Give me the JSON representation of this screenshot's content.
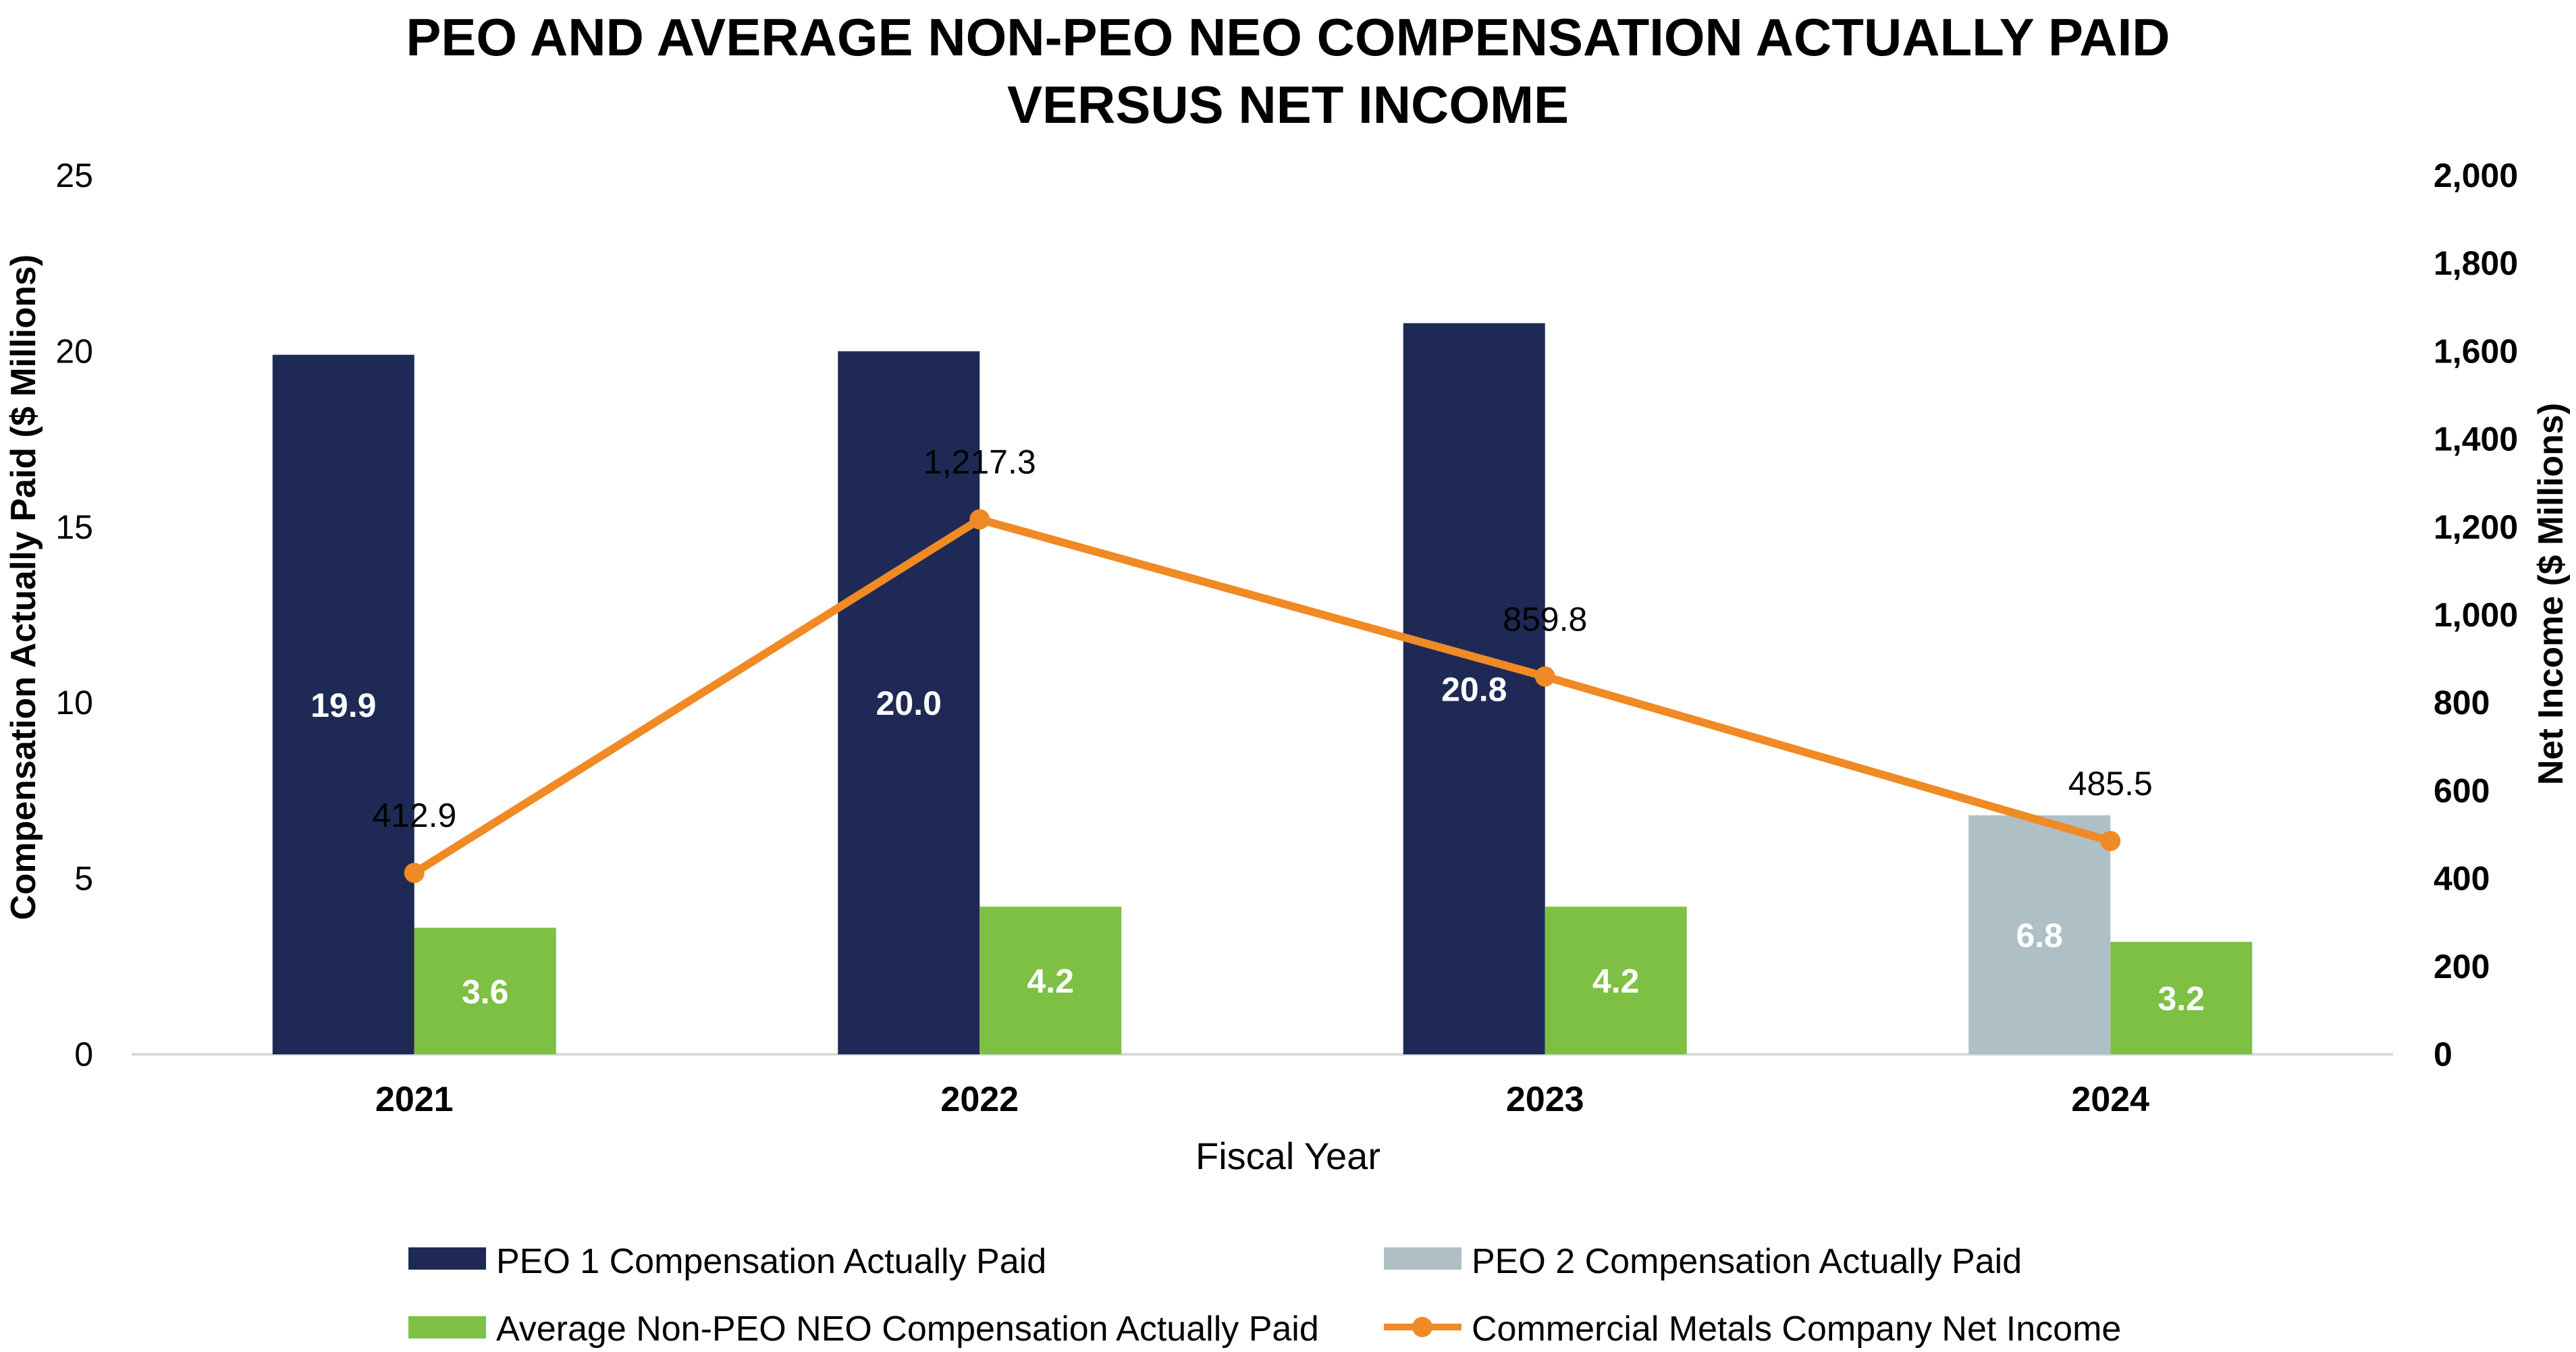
{
  "chart_data": {
    "type": "bar",
    "title_lines": [
      "PEO AND AVERAGE NON-PEO NEO COMPENSATION ACTUALLY PAID",
      "VERSUS NET INCOME"
    ],
    "xlabel": "Fiscal Year",
    "ylabel_left": "Compensation Actually Paid ($ Millions)",
    "ylabel_right": "Net Income ($ Millions)",
    "categories": [
      "2021",
      "2022",
      "2023",
      "2024"
    ],
    "ylim_left": [
      0,
      25
    ],
    "yticks_left": [
      "0",
      "5",
      "10",
      "15",
      "20",
      "25"
    ],
    "ylim_right": [
      0,
      2000
    ],
    "yticks_right": [
      "0",
      "200",
      "400",
      "600",
      "800",
      "1,000",
      "1,200",
      "1,400",
      "1,600",
      "1,800",
      "2,000"
    ],
    "series": [
      {
        "name": "PEO 1 Compensation Actually Paid",
        "kind": "bar",
        "axis": "left",
        "color": "#1e2a55",
        "values": [
          19.9,
          20.0,
          20.8,
          null
        ],
        "labels": [
          "19.9",
          "20.0",
          "20.8",
          ""
        ]
      },
      {
        "name": "PEO 2 Compensation Actually Paid",
        "kind": "bar",
        "axis": "left",
        "color": "#aebfc6",
        "values": [
          null,
          null,
          null,
          6.8
        ],
        "labels": [
          "",
          "",
          "",
          "6.8"
        ]
      },
      {
        "name": "Average Non-PEO NEO Compensation Actually Paid",
        "kind": "bar",
        "axis": "left",
        "color": "#7dc043",
        "values": [
          3.6,
          4.2,
          4.2,
          3.2
        ],
        "labels": [
          "3.6",
          "4.2",
          "4.2",
          "3.2"
        ]
      },
      {
        "name": "Commercial Metals Company Net Income",
        "kind": "line",
        "axis": "right",
        "color": "#f08a24",
        "values": [
          412.9,
          1217.3,
          859.8,
          485.5
        ],
        "labels": [
          "412.9",
          "1,217.3",
          "859.8",
          "485.5"
        ]
      }
    ],
    "legend": {
      "placement": "bottom",
      "items": [
        "PEO 1 Compensation Actually Paid",
        "PEO 2 Compensation Actually Paid",
        "Average Non-PEO NEO Compensation Actually Paid",
        "Commercial Metals Company Net Income"
      ]
    },
    "grid": false
  }
}
